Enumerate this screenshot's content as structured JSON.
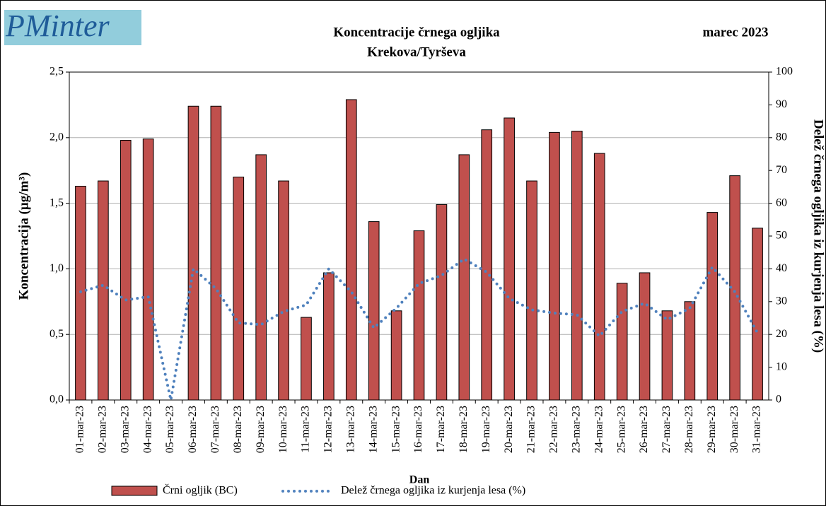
{
  "chart_data": {
    "type": "bar_line",
    "logo": "PMinter",
    "title": "Koncentracije  črnega ogljika",
    "subtitle": "Krekova/Tyrševa",
    "period": "marec 2023",
    "x_label": "Dan",
    "y_label": "Koncentracija  (µg/m³)",
    "y2_label": "Delež črnega ogljika iz kurjenja lesa (%)",
    "categories": [
      "01-mar-23",
      "02-mar-23",
      "03-mar-23",
      "04-mar-23",
      "05-mar-23",
      "06-mar-23",
      "07-mar-23",
      "08-mar-23",
      "09-mar-23",
      "10-mar-23",
      "11-mar-23",
      "12-mar-23",
      "13-mar-23",
      "14-mar-23",
      "15-mar-23",
      "16-mar-23",
      "17-mar-23",
      "18-mar-23",
      "19-mar-23",
      "20-mar-23",
      "21-mar-23",
      "22-mar-23",
      "23-mar-23",
      "24-mar-23",
      "25-mar-23",
      "26-mar-23",
      "27-mar-23",
      "28-mar-23",
      "29-mar-23",
      "30-mar-23",
      "31-mar-23"
    ],
    "series": [
      {
        "name": "Črni ogljik (BC)",
        "kind": "bar",
        "color": "#c0504d",
        "values": [
          1.63,
          1.67,
          1.98,
          1.99,
          null,
          2.24,
          2.24,
          1.7,
          1.87,
          1.67,
          0.63,
          0.97,
          2.29,
          1.36,
          0.68,
          1.29,
          1.49,
          1.87,
          2.06,
          2.15,
          1.67,
          2.04,
          2.05,
          1.88,
          0.89,
          0.97,
          0.68,
          0.75,
          1.43,
          1.71,
          1.31
        ]
      },
      {
        "name": "Delež črnega ogljika iz kurjenja lesa (%)",
        "kind": "line",
        "axis": "y2",
        "color": "#4f81bd",
        "values": [
          33,
          35,
          30.5,
          31.5,
          0,
          40,
          34,
          23.5,
          23,
          27,
          29,
          40,
          33,
          22,
          28,
          35.5,
          38,
          43,
          39,
          31,
          27.5,
          26.5,
          26,
          19.5,
          27,
          29.5,
          24.5,
          28,
          40.5,
          33,
          20.5
        ]
      }
    ],
    "ylim": [
      0,
      2.5
    ],
    "yticks": [
      {
        "value": 0,
        "label": "0,0"
      },
      {
        "value": 0.5,
        "label": "0,5"
      },
      {
        "value": 1,
        "label": "1,0"
      },
      {
        "value": 1.5,
        "label": "1,5"
      },
      {
        "value": 2,
        "label": "2,0"
      },
      {
        "value": 2.5,
        "label": "2,5"
      }
    ],
    "y2lim": [
      0,
      100
    ],
    "y2ticks": [
      0,
      10,
      20,
      30,
      40,
      50,
      60,
      70,
      80,
      90,
      100
    ],
    "grid": true
  }
}
